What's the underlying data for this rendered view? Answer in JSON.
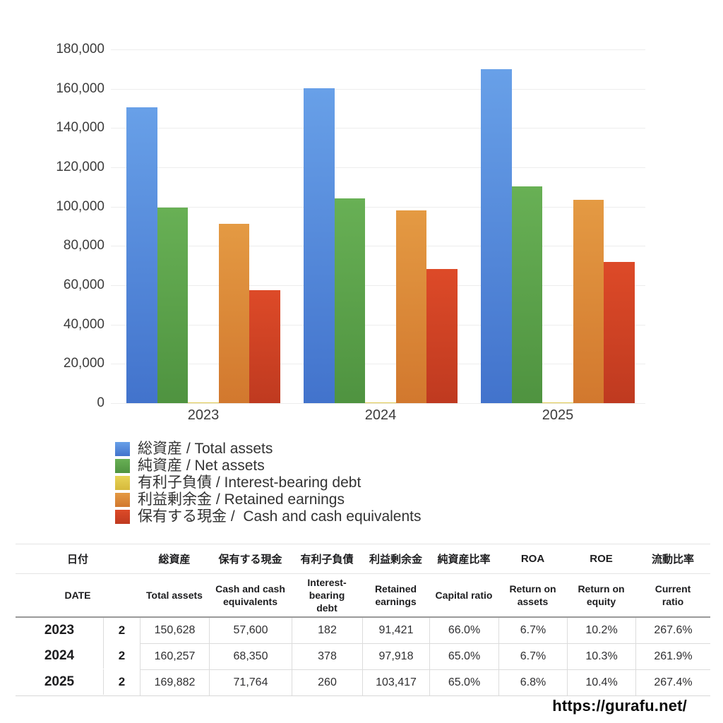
{
  "chart_data": {
    "type": "bar",
    "title": "",
    "xlabel": "",
    "ylabel": "",
    "categories": [
      "2023",
      "2024",
      "2025"
    ],
    "series": [
      {
        "name_ja": "総資産",
        "name_en": "Total assets",
        "legend_label": "総資産 / Total assets",
        "color": "#4d82d8",
        "gradient": [
          "#68a0e8",
          "#4273cc"
        ],
        "values": [
          150628,
          160257,
          169882
        ]
      },
      {
        "name_ja": "純資産",
        "name_en": "Net assets",
        "legend_label": "純資産 / Net assets",
        "color": "#57a447",
        "gradient": [
          "#68b055",
          "#4f9340"
        ],
        "values": [
          99414,
          104167,
          110423
        ]
      },
      {
        "name_ja": "有利子負債",
        "name_en": "Interest-bearing debt",
        "legend_label": "有利子負債 / Interest-bearing debt",
        "color": "#e0c84a",
        "gradient": [
          "#e8d456",
          "#d6b93c"
        ],
        "values": [
          182,
          378,
          260
        ]
      },
      {
        "name_ja": "利益剰余金",
        "name_en": "Retained earnings",
        "legend_label": "利益剰余金 / Retained earnings",
        "color": "#dd8535",
        "gradient": [
          "#e49a43",
          "#d2782e"
        ],
        "values": [
          91421,
          97918,
          103417
        ]
      },
      {
        "name_ja": "保有する現金",
        "name_en": "Cash and cash equivalents",
        "legend_label": "保有する現金 /  Cash and cash equivalents",
        "color": "#cc4426",
        "gradient": [
          "#dd4a28",
          "#bf3a20"
        ],
        "values": [
          57600,
          68350,
          71764
        ]
      }
    ],
    "ylim": [
      0,
      180000
    ],
    "ytick_values": [
      0,
      20000,
      40000,
      60000,
      80000,
      100000,
      120000,
      140000,
      160000,
      180000
    ],
    "ytick_labels": [
      "0",
      "20,000",
      "40,000",
      "60,000",
      "80,000",
      "100,000",
      "120,000",
      "140,000",
      "160,000",
      "180,000"
    ],
    "grid": true,
    "legend_position": "bottom-left"
  },
  "table": {
    "headers_ja": [
      "日付",
      "総資産",
      "保有する現金",
      "有利子負債",
      "利益剰余金",
      "純資産比率",
      "ROA",
      "ROE",
      "流動比率"
    ],
    "headers_en": [
      "DATE",
      "Total assets",
      "Cash and cash\nequivalents",
      "Interest-\nbearing\ndebt",
      "Retained\nearnings",
      "Capital ratio",
      "Return on\nassets",
      "Return on\nequity",
      "Current\nratio"
    ],
    "rows": [
      {
        "year": "2023",
        "month": "2",
        "values": [
          "150,628",
          "57,600",
          "182",
          "91,421",
          "66.0%",
          "6.7%",
          "10.2%",
          "267.6%"
        ]
      },
      {
        "year": "2024",
        "month": "2",
        "values": [
          "160,257",
          "68,350",
          "378",
          "97,918",
          "65.0%",
          "6.7%",
          "10.3%",
          "261.9%"
        ]
      },
      {
        "year": "2025",
        "month": "2",
        "values": [
          "169,882",
          "71,764",
          "260",
          "103,417",
          "65.0%",
          "6.8%",
          "10.4%",
          "267.4%"
        ]
      }
    ]
  },
  "footer": {
    "url": "https://gurafu.net/"
  }
}
